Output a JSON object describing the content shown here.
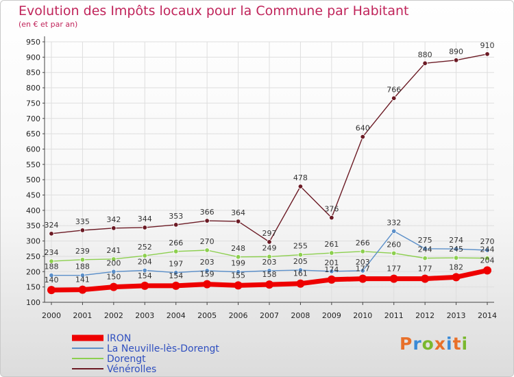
{
  "header": {
    "title": "Evolution des Impôts locaux pour la Commune par Habitant",
    "subtitle": "(en € et par an)"
  },
  "logo": {
    "text": "Proxiti",
    "colors": [
      "#e8702a",
      "#3a8ad6",
      "#7ab82e",
      "#e8702a",
      "#3a8ad6",
      "#e8702a",
      "#7ab82e"
    ]
  },
  "chart_data": {
    "type": "line",
    "title": "Evolution des Impôts locaux pour la Commune par Habitant",
    "subtitle": "(en € et par an)",
    "x": [
      "2000",
      "2001",
      "2002",
      "2003",
      "2004",
      "2005",
      "2006",
      "2007",
      "2008",
      "2009",
      "2010",
      "2011",
      "2012",
      "2013",
      "2014"
    ],
    "ylim": [
      100,
      950
    ],
    "yticks": [
      100,
      150,
      200,
      250,
      300,
      350,
      400,
      450,
      500,
      550,
      600,
      650,
      700,
      750,
      800,
      850,
      900,
      950
    ],
    "grid": true,
    "legend_position": "bottom-left",
    "series": [
      {
        "name": "Vénérolles",
        "color": "#6b1a24",
        "values": [
          324,
          335,
          342,
          344,
          353,
          366,
          364,
          297,
          478,
          376,
          640,
          766,
          880,
          890,
          910
        ]
      },
      {
        "name": "Dorengt",
        "color": "#8ccf4e",
        "values": [
          234,
          239,
          241,
          252,
          266,
          270,
          248,
          249,
          255,
          261,
          266,
          260,
          244,
          245,
          244
        ]
      },
      {
        "name": "La Neuville-lès-Dorengt",
        "color": "#5b8fc9",
        "values": [
          188,
          188,
          200,
          204,
          197,
          203,
          199,
          203,
          205,
          201,
          203,
          332,
          275,
          274,
          270
        ]
      },
      {
        "name": "IRON",
        "color": "#ee0000",
        "values": [
          140,
          141,
          150,
          154,
          154,
          159,
          155,
          158,
          161,
          174,
          177,
          177,
          177,
          182,
          204
        ]
      }
    ]
  }
}
